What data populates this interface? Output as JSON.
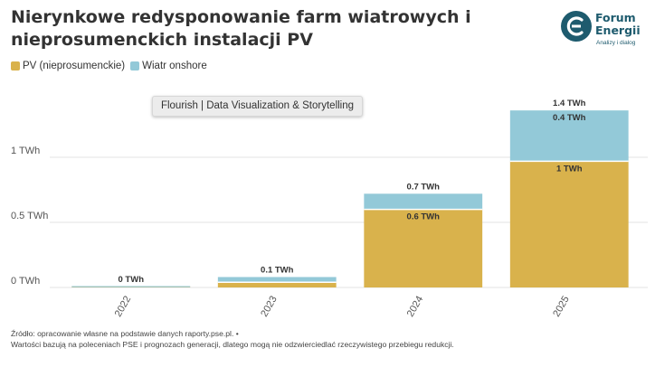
{
  "header": {
    "title": "Nierynkowe redysponowanie farm wiatrowych i nieprosumenckich instalacji PV"
  },
  "logo": {
    "name_line1": "Forum",
    "name_line2": "Energii",
    "tagline": "Analizy i dialog"
  },
  "watermark": "Flourish | Data Visualization & Storytelling",
  "chart_data": {
    "type": "bar",
    "stacked": true,
    "categories": [
      "2022",
      "2023",
      "2024",
      "2025"
    ],
    "series": [
      {
        "name": "PV (nieprosumenckie)",
        "color": "#d9b24c",
        "values": [
          0.002,
          0.04,
          0.6,
          0.97
        ],
        "labels": [
          "",
          "",
          "0.6 TWh",
          "1 TWh"
        ]
      },
      {
        "name": "Wiatr onshore",
        "color": "#93c9d8",
        "values": [
          0.004,
          0.04,
          0.12,
          0.39
        ],
        "labels": [
          "",
          "",
          "",
          "0.4 TWh"
        ]
      }
    ],
    "totals": [
      "0 TWh",
      "0.1 TWh",
      "0.7 TWh",
      "1.4 TWh"
    ],
    "y_ticks": [
      {
        "value": 0,
        "label": "0 TWh"
      },
      {
        "value": 0.5,
        "label": "0.5 TWh"
      },
      {
        "value": 1,
        "label": "1 TWh"
      }
    ],
    "ylim": [
      0,
      1.4
    ],
    "xlabel": "",
    "ylabel": "",
    "grid": true,
    "legend_position": "top-left"
  },
  "footer": {
    "line1": "Źródło: opracowanie własne na podstawie danych raporty.pse.pl. •",
    "line2": "Wartości bazują na poleceniach PSE i prognozach generacji, dlatego mogą nie odzwierciedlać rzeczywistego przebiegu redukcji."
  }
}
